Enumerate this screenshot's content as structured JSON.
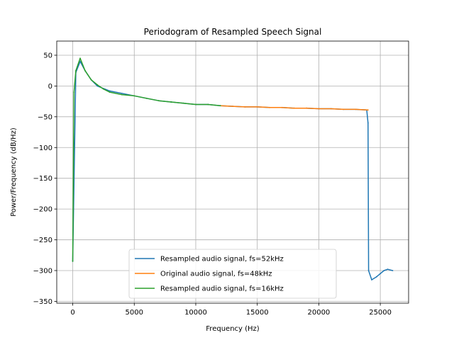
{
  "chart_data": {
    "type": "line",
    "title": "Periodogram of Resampled Speech Signal",
    "xlabel": "Frequency (Hz)",
    "ylabel": "Power/Frequency (dB/Hz)",
    "xlim": [
      -1300,
      27300
    ],
    "ylim": [
      -353,
      73
    ],
    "grid": true,
    "legend_position": "lower-center",
    "x_ticks": [
      0,
      5000,
      10000,
      15000,
      20000,
      25000
    ],
    "y_ticks": [
      50,
      0,
      -50,
      -100,
      -150,
      -200,
      -250,
      -300,
      -350
    ],
    "series": [
      {
        "name": "Resampled audio signal, fs=52kHz",
        "color": "#1f77b4",
        "x": [
          0,
          250,
          600,
          1000,
          1500,
          2000,
          3000,
          4000,
          5000,
          6000,
          7000,
          8000,
          9000,
          10000,
          11000,
          12000,
          13000,
          14000,
          15000,
          16000,
          17000,
          18000,
          19000,
          20000,
          21000,
          22000,
          23000,
          23900,
          24000,
          24050,
          24300,
          24700,
          25000,
          25300,
          25600,
          26000
        ],
        "y": [
          -285,
          22,
          40,
          25,
          10,
          0,
          -8,
          -12,
          -16,
          -20,
          -24,
          -26,
          -28,
          -30,
          -30,
          -32,
          -33,
          -34,
          -34,
          -35,
          -35,
          -36,
          -36,
          -37,
          -37,
          -38,
          -38,
          -39,
          -60,
          -300,
          -315,
          -310,
          -305,
          -300,
          -298,
          -300
        ]
      },
      {
        "name": "Original audio signal, fs=48kHz",
        "color": "#ff7f0e",
        "x": [
          12000,
          13000,
          14000,
          15000,
          16000,
          17000,
          18000,
          19000,
          20000,
          21000,
          22000,
          23000,
          24000
        ],
        "y": [
          -32,
          -33,
          -34,
          -34,
          -35,
          -35,
          -36,
          -36,
          -37,
          -37,
          -38,
          -38,
          -39
        ]
      },
      {
        "name": "Resampled audio signal, fs=16kHz",
        "color": "#2ca02c",
        "x": [
          0,
          100,
          250,
          600,
          1000,
          1500,
          2000,
          2500,
          3000,
          4000,
          5000,
          6000,
          7000,
          8000,
          9000,
          10000,
          11000,
          12000
        ],
        "y": [
          -285,
          -10,
          25,
          45,
          25,
          10,
          2,
          -5,
          -10,
          -14,
          -16,
          -20,
          -24,
          -26,
          -28,
          -30,
          -30,
          -32
        ]
      }
    ]
  }
}
